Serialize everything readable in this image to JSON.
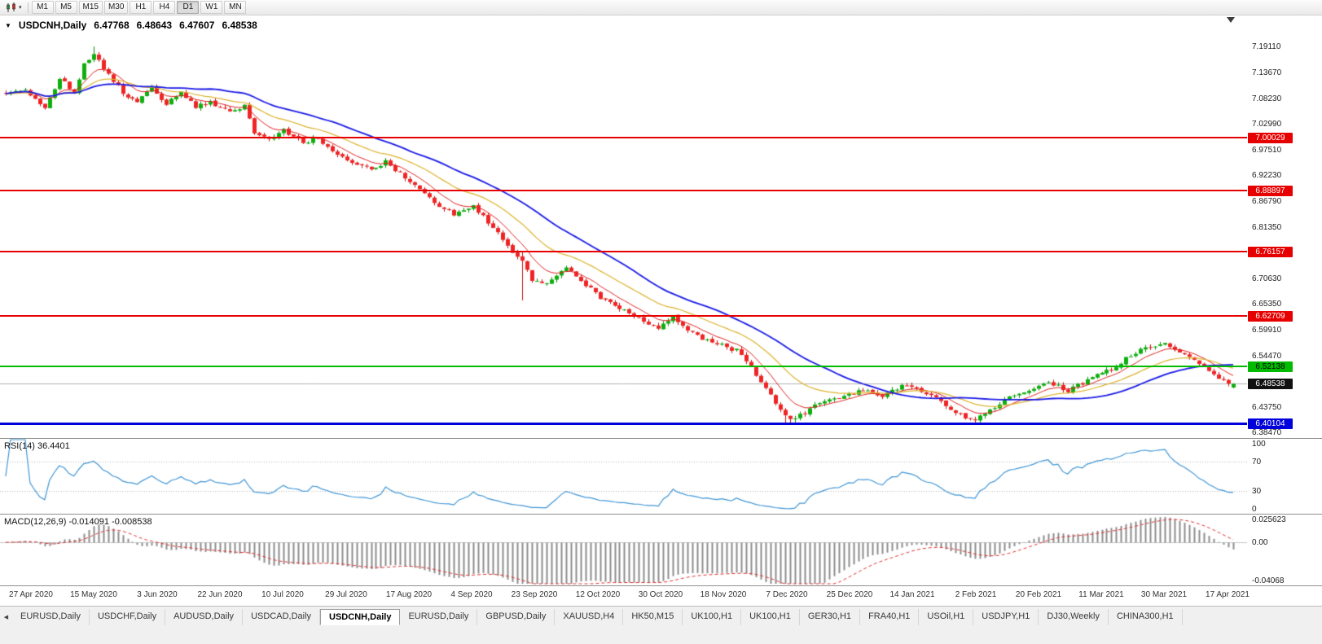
{
  "toolbar": {
    "chart_type_icon": "candlestick-chart-icon",
    "timeframes": [
      "M1",
      "M5",
      "M15",
      "M30",
      "H1",
      "H4",
      "D1",
      "W1",
      "MN"
    ],
    "active_timeframe": "D1"
  },
  "chart": {
    "symbol_title": "USDCNH,Daily",
    "ohlc": {
      "open": "6.47768",
      "high": "6.48643",
      "low": "6.47607",
      "close": "6.48538"
    },
    "y_axis_labels": [
      "7.19110",
      "7.13670",
      "7.08230",
      "7.02990",
      "6.97510",
      "6.92230",
      "6.86790",
      "6.81350",
      "6.70630",
      "6.65350",
      "6.59910",
      "6.54470",
      "6.43750",
      "6.38470"
    ],
    "levels": [
      {
        "label": "7.00029",
        "price": 7.00029,
        "color": "#e60000",
        "text": "#ffffff",
        "thickness": 2,
        "kind": "resistance"
      },
      {
        "label": "6.88897",
        "price": 6.88897,
        "color": "#e60000",
        "text": "#ffffff",
        "thickness": 2,
        "kind": "resistance"
      },
      {
        "label": "6.76157",
        "price": 6.76157,
        "color": "#e60000",
        "text": "#ffffff",
        "thickness": 2,
        "kind": "resistance"
      },
      {
        "label": "6.62709",
        "price": 6.62709,
        "color": "#e60000",
        "text": "#ffffff",
        "thickness": 2,
        "kind": "resistance"
      },
      {
        "label": "6.52138",
        "price": 6.52138,
        "color": "#00bb00",
        "text": "#000000",
        "thickness": 2,
        "kind": "support"
      },
      {
        "label": "6.40104",
        "price": 6.40104,
        "color": "#0000dd",
        "text": "#ffffff",
        "thickness": 3,
        "kind": "support"
      }
    ],
    "current_price": {
      "label": "6.48538",
      "price": 6.48538,
      "bg": "#111111",
      "text": "#ffffff",
      "bid_line_color": "#b0b0b0"
    },
    "x_axis_labels": [
      "27 Apr 2020",
      "15 May 2020",
      "3 Jun 2020",
      "22 Jun 2020",
      "10 Jul 2020",
      "29 Jul 2020",
      "17 Aug 2020",
      "4 Sep 2020",
      "23 Sep 2020",
      "12 Oct 2020",
      "30 Oct 2020",
      "18 Nov 2020",
      "7 Dec 2020",
      "25 Dec 2020",
      "14 Jan 2021",
      "2 Feb 2021",
      "20 Feb 2021",
      "11 Mar 2021",
      "30 Mar 2021",
      "17 Apr 2021"
    ]
  },
  "rsi": {
    "label": "RSI(14) 36.4401",
    "value": 36.4401,
    "period": 14,
    "line_color": "#3f95d4",
    "level_lines": [
      70,
      30
    ],
    "axis_labels": [
      "100",
      "70",
      "30",
      "0"
    ]
  },
  "macd": {
    "label": "MACD(12,26,9) -0.014091 -0.008538",
    "macd_value": -0.014091,
    "signal_value": -0.008538,
    "fast": 12,
    "slow": 26,
    "signal": 9,
    "histogram_color": "#8c8c8c",
    "signal_color": "#e03030",
    "axis_labels": [
      {
        "label": "0.025623",
        "value": 0.025623
      },
      {
        "label": "0.00",
        "value": 0
      },
      {
        "label": "-0.04068",
        "value": -0.04068
      }
    ],
    "range": {
      "max": 0.025623,
      "min": -0.04068
    }
  },
  "bottom_tabs": {
    "active_index": 4,
    "tabs": [
      "EURUSD,Daily",
      "USDCHF,Daily",
      "AUDUSD,Daily",
      "USDCAD,Daily",
      "USDCNH,Daily",
      "EURUSD,Daily",
      "GBPUSD,Daily",
      "XAUUSD,H4",
      "HK50,M15",
      "UK100,H1",
      "UK100,H1",
      "GER30,H1",
      "FRA40,H1",
      "USOil,H1",
      "USDJPY,H1",
      "DJ30,Weekly",
      "CHINA300,H1"
    ]
  },
  "chart_data": {
    "type": "candlestick",
    "symbol": "USDCNH",
    "period": "Daily",
    "bars": 253,
    "seed": 1337,
    "noise": 0.009,
    "wick": 0.006,
    "floor_price": 6.4011,
    "cap_price": 7.192,
    "up_color": "#0faf0f",
    "up_border": "#0a8a0a",
    "down_color": "#f02424",
    "down_border": "#c01414",
    "price_range": {
      "top": 7.256,
      "bottom": 6.372
    },
    "ma_lines": [
      {
        "type": "ema",
        "period": 8,
        "color": "#e02020",
        "width": 1
      },
      {
        "type": "ema",
        "period": 20,
        "color": "#dcb22c",
        "width": 1.2
      },
      {
        "type": "sma",
        "period": 34,
        "color": "#1a1ae6",
        "width": 1.8
      }
    ],
    "close_anchors": [
      [
        0,
        7.095
      ],
      [
        4,
        7.1
      ],
      [
        8,
        7.065
      ],
      [
        11,
        7.125
      ],
      [
        14,
        7.095
      ],
      [
        16,
        7.155
      ],
      [
        18,
        7.175
      ],
      [
        21,
        7.13
      ],
      [
        24,
        7.095
      ],
      [
        27,
        7.075
      ],
      [
        30,
        7.105
      ],
      [
        33,
        7.07
      ],
      [
        36,
        7.095
      ],
      [
        39,
        7.065
      ],
      [
        42,
        7.075
      ],
      [
        46,
        7.055
      ],
      [
        49,
        7.065
      ],
      [
        51,
        7.01
      ],
      [
        54,
        6.995
      ],
      [
        57,
        7.015
      ],
      [
        61,
        6.99
      ],
      [
        64,
        7.0
      ],
      [
        67,
        6.975
      ],
      [
        71,
        6.95
      ],
      [
        75,
        6.935
      ],
      [
        78,
        6.95
      ],
      [
        81,
        6.925
      ],
      [
        84,
        6.9
      ],
      [
        88,
        6.865
      ],
      [
        92,
        6.84
      ],
      [
        96,
        6.855
      ],
      [
        100,
        6.815
      ],
      [
        103,
        6.775
      ],
      [
        106,
        6.74
      ],
      [
        108,
        6.705
      ],
      [
        111,
        6.695
      ],
      [
        115,
        6.725
      ],
      [
        118,
        6.7
      ],
      [
        122,
        6.665
      ],
      [
        126,
        6.645
      ],
      [
        131,
        6.615
      ],
      [
        134,
        6.6
      ],
      [
        137,
        6.625
      ],
      [
        141,
        6.59
      ],
      [
        146,
        6.57
      ],
      [
        150,
        6.555
      ],
      [
        153,
        6.52
      ],
      [
        156,
        6.475
      ],
      [
        159,
        6.435
      ],
      [
        161,
        6.408
      ],
      [
        164,
        6.425
      ],
      [
        167,
        6.445
      ],
      [
        171,
        6.455
      ],
      [
        176,
        6.475
      ],
      [
        180,
        6.46
      ],
      [
        184,
        6.48
      ],
      [
        188,
        6.47
      ],
      [
        192,
        6.45
      ],
      [
        196,
        6.42
      ],
      [
        199,
        6.408
      ],
      [
        202,
        6.43
      ],
      [
        206,
        6.455
      ],
      [
        210,
        6.47
      ],
      [
        214,
        6.49
      ],
      [
        218,
        6.47
      ],
      [
        223,
        6.5
      ],
      [
        227,
        6.515
      ],
      [
        231,
        6.545
      ],
      [
        234,
        6.56
      ],
      [
        238,
        6.572
      ],
      [
        241,
        6.555
      ],
      [
        244,
        6.54
      ],
      [
        248,
        6.505
      ],
      [
        251,
        6.488
      ],
      [
        252,
        6.48538
      ]
    ],
    "touch_low_bars": [
      160,
      161,
      162,
      199,
      200
    ],
    "spikes": {
      "18": {
        "high": 7.191
      },
      "106": {
        "high": 6.7615,
        "low": 6.66
      }
    }
  }
}
